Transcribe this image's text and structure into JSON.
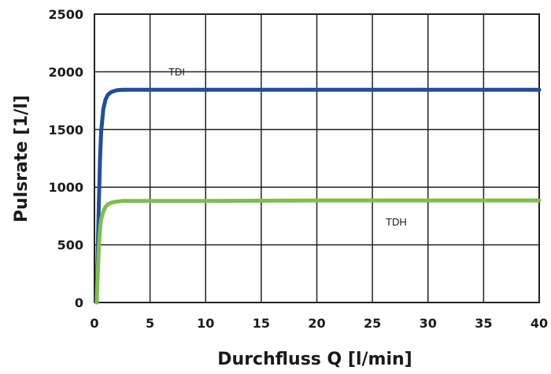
{
  "chart_data": {
    "type": "line",
    "title": "",
    "xlabel": "Durchfluss Q [l/min]",
    "ylabel": "Pulsrate [1/l]",
    "xlim": [
      0,
      40
    ],
    "ylim": [
      0,
      2500
    ],
    "xticks": [
      "0",
      "5",
      "10",
      "15",
      "20",
      "25",
      "30",
      "35",
      "40"
    ],
    "yticks": [
      "0",
      "500",
      "1000",
      "1500",
      "2000",
      "2500"
    ],
    "grid": true,
    "legend": "none",
    "series": [
      {
        "name": "TDI",
        "color": "#1f4e9e",
        "x": [
          0.2,
          0.3,
          0.4,
          0.5,
          0.6,
          0.8,
          1.0,
          1.2,
          1.5,
          2.0,
          2.5,
          3.0,
          5,
          10,
          20,
          30,
          40
        ],
        "y": [
          0,
          450,
          900,
          1250,
          1480,
          1680,
          1760,
          1800,
          1825,
          1840,
          1845,
          1845,
          1845,
          1845,
          1845,
          1845,
          1845
        ]
      },
      {
        "name": "TDH",
        "color": "#7cbf4a",
        "x": [
          0.2,
          0.3,
          0.4,
          0.5,
          0.6,
          0.8,
          1.0,
          1.2,
          1.5,
          2.0,
          2.5,
          3.0,
          5,
          10,
          20,
          30,
          40
        ],
        "y": [
          0,
          250,
          500,
          640,
          720,
          790,
          830,
          850,
          865,
          875,
          880,
          880,
          880,
          880,
          885,
          885,
          885
        ]
      }
    ]
  }
}
